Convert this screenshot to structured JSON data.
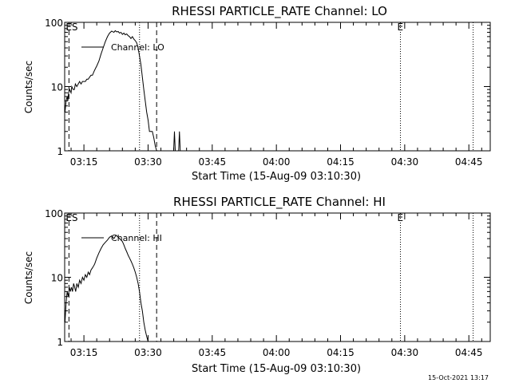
{
  "footer": {
    "timestamp": "15-Oct-2021 13:17"
  },
  "chart_data": [
    {
      "type": "line",
      "title": "RHESSI PARTICLE_RATE Channel: LO",
      "xlabel": "Start Time (15-Aug-09 03:10:30)",
      "ylabel": "Counts/sec",
      "y_scale": "log",
      "ylim": [
        1,
        100
      ],
      "y_ticks": [
        {
          "value": 1,
          "label": "1"
        },
        {
          "value": 10,
          "label": "10"
        },
        {
          "value": 100,
          "label": "100"
        }
      ],
      "x_ticks": [
        "03:15",
        "03:30",
        "03:45",
        "04:00",
        "04:15",
        "04:30",
        "04:45"
      ],
      "xlim": [
        "03:10:30",
        "04:50:00"
      ],
      "legend": {
        "label": "Channel: LO",
        "placement": "top-left"
      },
      "markers": [
        {
          "time": "03:11:30",
          "style": "dashed",
          "label": "ES"
        },
        {
          "time": "03:28:00",
          "style": "dotted",
          "label": ""
        },
        {
          "time": "03:32:00",
          "style": "dashed",
          "label": ""
        },
        {
          "time": "04:29:00",
          "style": "dotted",
          "label": "E"
        },
        {
          "time": "04:46:00",
          "style": "dotted",
          "label": ""
        }
      ],
      "series": [
        {
          "name": "Channel: LO",
          "x": [
            "03:10:35",
            "03:10:50",
            "03:11:05",
            "03:11:15",
            "03:11:25",
            "03:11:40",
            "03:12:00",
            "03:12:10",
            "03:12:30",
            "03:12:45",
            "03:13:00",
            "03:13:20",
            "03:13:40",
            "03:14:00",
            "03:14:20",
            "03:14:40",
            "03:15:00",
            "03:15:20",
            "03:15:40",
            "03:16:00",
            "03:16:20",
            "03:16:40",
            "03:17:00",
            "03:17:20",
            "03:17:40",
            "03:18:00",
            "03:18:30",
            "03:19:00",
            "03:19:30",
            "03:20:00",
            "03:20:30",
            "03:21:00",
            "03:21:30",
            "03:22:00",
            "03:22:20",
            "03:22:40",
            "03:23:00",
            "03:23:20",
            "03:23:40",
            "03:24:00",
            "03:24:20",
            "03:24:40",
            "03:25:00",
            "03:25:20",
            "03:25:40",
            "03:26:00",
            "03:26:20",
            "03:26:40",
            "03:27:00",
            "03:27:20",
            "03:27:40",
            "03:28:00",
            "03:28:20",
            "03:28:40",
            "03:29:00",
            "03:29:20",
            "03:29:40",
            "03:30:00",
            "03:30:20",
            "03:30:40",
            "03:31:00",
            "03:31:20",
            "03:31:40",
            "03:32:00"
          ],
          "values": [
            4,
            6,
            7,
            6,
            8,
            9,
            8,
            10,
            9,
            9,
            11,
            10,
            11,
            12,
            11,
            12,
            12,
            12,
            13,
            13,
            14,
            15,
            15,
            17,
            19,
            21,
            25,
            32,
            40,
            50,
            60,
            68,
            73,
            70,
            74,
            71,
            72,
            68,
            70,
            65,
            68,
            64,
            66,
            62,
            60,
            56,
            60,
            55,
            52,
            48,
            40,
            30,
            22,
            14,
            9,
            6,
            4,
            3,
            2,
            2,
            2,
            1.6,
            1.2,
            1
          ]
        }
      ],
      "spikes": [
        {
          "x": "03:36:10",
          "value": 2
        },
        {
          "x": "03:37:20",
          "value": 2
        }
      ]
    },
    {
      "type": "line",
      "title": "RHESSI PARTICLE_RATE Channel: HI",
      "xlabel": "Start Time (15-Aug-09 03:10:30)",
      "ylabel": "Counts/sec",
      "y_scale": "log",
      "ylim": [
        1,
        100
      ],
      "y_ticks": [
        {
          "value": 1,
          "label": "1"
        },
        {
          "value": 10,
          "label": "10"
        },
        {
          "value": 100,
          "label": "100"
        }
      ],
      "x_ticks": [
        "03:15",
        "03:30",
        "03:45",
        "04:00",
        "04:15",
        "04:30",
        "04:45"
      ],
      "xlim": [
        "03:10:30",
        "04:50:00"
      ],
      "legend": {
        "label": "Channel: HI",
        "placement": "top-left"
      },
      "markers": [
        {
          "time": "03:11:30",
          "style": "dashed",
          "label": "ES"
        },
        {
          "time": "03:28:00",
          "style": "dotted",
          "label": ""
        },
        {
          "time": "03:32:00",
          "style": "dashed",
          "label": ""
        },
        {
          "time": "04:29:00",
          "style": "dotted",
          "label": "E"
        },
        {
          "time": "04:46:00",
          "style": "dotted",
          "label": ""
        }
      ],
      "series": [
        {
          "name": "Channel: HI",
          "x": [
            "03:10:35",
            "03:10:50",
            "03:11:05",
            "03:11:20",
            "03:11:35",
            "03:11:50",
            "03:12:05",
            "03:12:20",
            "03:12:35",
            "03:12:50",
            "03:13:05",
            "03:13:20",
            "03:13:40",
            "03:14:00",
            "03:14:20",
            "03:14:40",
            "03:15:00",
            "03:15:20",
            "03:15:40",
            "03:16:00",
            "03:16:20",
            "03:16:40",
            "03:17:00",
            "03:17:30",
            "03:18:00",
            "03:18:30",
            "03:19:00",
            "03:19:30",
            "03:20:00",
            "03:20:30",
            "03:21:00",
            "03:21:30",
            "03:22:00",
            "03:22:30",
            "03:23:00",
            "03:23:20",
            "03:23:40",
            "03:24:00",
            "03:24:20",
            "03:24:40",
            "03:25:00",
            "03:25:20",
            "03:25:40",
            "03:26:00",
            "03:26:20",
            "03:26:40",
            "03:27:00",
            "03:27:20",
            "03:27:40",
            "03:28:00",
            "03:28:20",
            "03:28:40",
            "03:29:00",
            "03:29:20",
            "03:29:40",
            "03:30:00"
          ],
          "values": [
            2,
            4,
            6,
            5,
            7,
            6,
            7,
            6,
            8,
            7,
            6,
            8,
            7,
            9,
            8,
            10,
            9,
            11,
            10,
            12,
            11,
            13,
            14,
            16,
            20,
            24,
            28,
            32,
            35,
            38,
            42,
            44,
            40,
            45,
            42,
            40,
            38,
            36,
            32,
            28,
            25,
            22,
            20,
            18,
            16,
            14,
            12,
            10,
            8,
            6,
            4,
            3,
            2,
            1.5,
            1.2,
            1
          ]
        }
      ],
      "spikes": []
    }
  ]
}
